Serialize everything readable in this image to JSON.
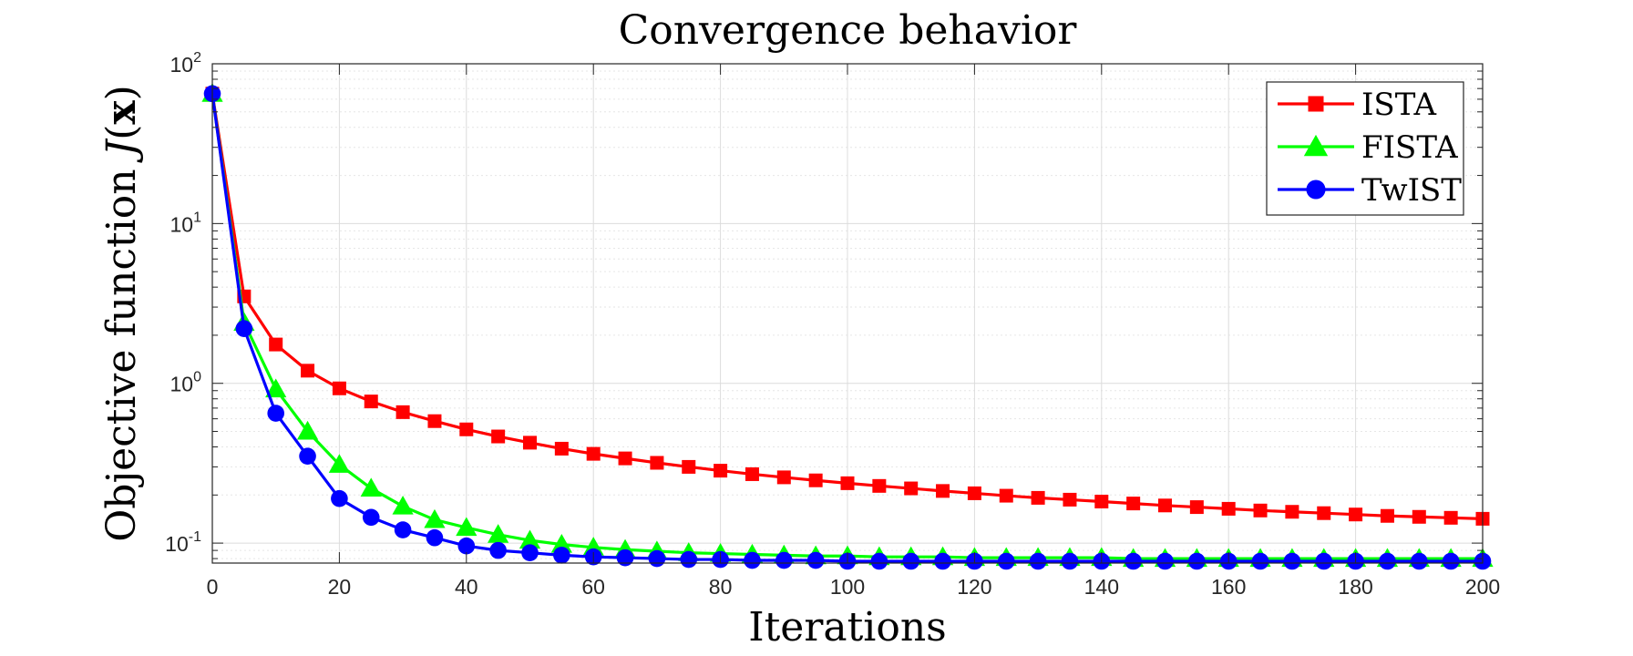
{
  "chart_data": {
    "type": "line",
    "title": "Convergence behavior",
    "xlabel": "Iterations",
    "ylabel_prefix": "Objective function ",
    "ylabel_var": "J",
    "ylabel_open": "(",
    "ylabel_bold": "x",
    "ylabel_close": ")",
    "xlim": [
      0,
      200
    ],
    "ylim": [
      0.075,
      100
    ],
    "yscale": "log",
    "grid": true,
    "legend_position": "top-right",
    "x_ticks": [
      "0",
      "20",
      "40",
      "60",
      "80",
      "100",
      "120",
      "140",
      "160",
      "180",
      "200"
    ],
    "y_ticks": [
      {
        "base": "10",
        "exp": "-1",
        "value": 0.1
      },
      {
        "base": "10",
        "exp": "0",
        "value": 1
      },
      {
        "base": "10",
        "exp": "1",
        "value": 10
      },
      {
        "base": "10",
        "exp": "2",
        "value": 100
      }
    ],
    "x": [
      0,
      5,
      10,
      15,
      20,
      25,
      30,
      35,
      40,
      45,
      50,
      55,
      60,
      65,
      70,
      75,
      80,
      85,
      90,
      95,
      100,
      105,
      110,
      115,
      120,
      125,
      130,
      135,
      140,
      145,
      150,
      155,
      160,
      165,
      170,
      175,
      180,
      185,
      190,
      195,
      200
    ],
    "series": [
      {
        "name": "ISTA",
        "color": "#ff0000",
        "marker": "square",
        "values": [
          65,
          3.5,
          1.75,
          1.2,
          0.93,
          0.77,
          0.66,
          0.58,
          0.515,
          0.465,
          0.425,
          0.39,
          0.362,
          0.339,
          0.318,
          0.3,
          0.284,
          0.27,
          0.258,
          0.247,
          0.237,
          0.228,
          0.22,
          0.212,
          0.205,
          0.198,
          0.192,
          0.187,
          0.182,
          0.177,
          0.172,
          0.168,
          0.164,
          0.16,
          0.157,
          0.154,
          0.151,
          0.148,
          0.146,
          0.144,
          0.142
        ]
      },
      {
        "name": "FISTA",
        "color": "#00ff00",
        "marker": "triangle",
        "values": [
          65,
          2.4,
          0.92,
          0.5,
          0.31,
          0.22,
          0.17,
          0.14,
          0.125,
          0.113,
          0.104,
          0.098,
          0.094,
          0.091,
          0.089,
          0.087,
          0.086,
          0.085,
          0.084,
          0.083,
          0.083,
          0.082,
          0.082,
          0.082,
          0.081,
          0.081,
          0.081,
          0.081,
          0.081,
          0.08,
          0.08,
          0.08,
          0.08,
          0.08,
          0.08,
          0.08,
          0.08,
          0.08,
          0.08,
          0.08,
          0.08
        ]
      },
      {
        "name": "TwIST",
        "color": "#0000ff",
        "marker": "circle",
        "values": [
          65,
          2.2,
          0.65,
          0.35,
          0.19,
          0.145,
          0.121,
          0.108,
          0.096,
          0.09,
          0.087,
          0.084,
          0.082,
          0.081,
          0.08,
          0.079,
          0.079,
          0.078,
          0.078,
          0.078,
          0.077,
          0.077,
          0.077,
          0.077,
          0.077,
          0.077,
          0.077,
          0.077,
          0.077,
          0.077,
          0.077,
          0.077,
          0.077,
          0.077,
          0.077,
          0.077,
          0.077,
          0.077,
          0.077,
          0.077,
          0.077
        ]
      }
    ]
  }
}
